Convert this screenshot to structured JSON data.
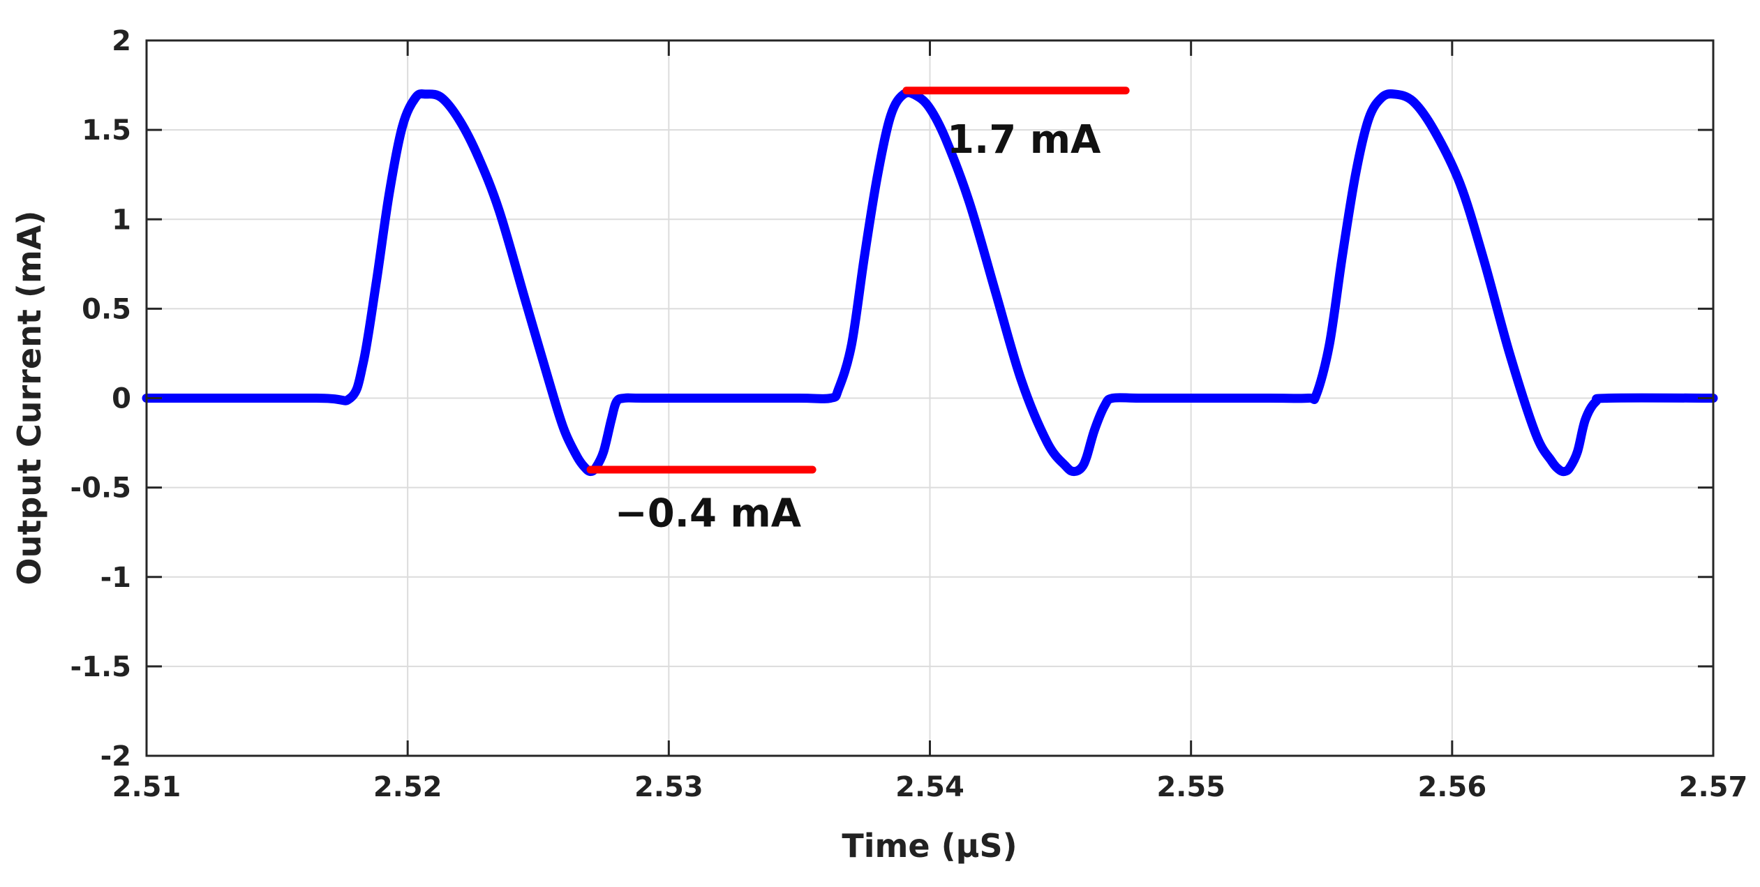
{
  "chart_data": {
    "type": "line",
    "xlabel": "Time (μS)",
    "ylabel": "Output Current (mA)",
    "xlim": [
      2.51,
      2.57
    ],
    "ylim": [
      -2,
      2
    ],
    "xticks": [
      2.51,
      2.52,
      2.53,
      2.54,
      2.55,
      2.56,
      2.57
    ],
    "xtick_labels": [
      "2.51",
      "2.52",
      "2.53",
      "2.54",
      "2.55",
      "2.56",
      "2.57"
    ],
    "yticks": [
      2,
      1.5,
      1,
      0.5,
      0,
      -0.5,
      -1,
      -1.5,
      -2
    ],
    "ytick_labels": [
      "2",
      "1.5",
      "1",
      "0.5",
      "0",
      "-0.5",
      "-1",
      "-1.5",
      "-2"
    ],
    "grid": true,
    "series": [
      {
        "color": "#0000ff",
        "x": [
          2.51,
          2.5165,
          2.5178,
          2.5183,
          2.5188,
          2.5193,
          2.5198,
          2.5203,
          2.5207,
          2.5213,
          2.522,
          2.5227,
          2.5235,
          2.5245,
          2.5255,
          2.526,
          2.5265,
          2.5268,
          2.527,
          2.5272,
          2.5275,
          2.5278,
          2.528,
          2.5283,
          2.529,
          2.532,
          2.535,
          2.5362,
          2.5365,
          2.537,
          2.5375,
          2.538,
          2.5385,
          2.539,
          2.5395,
          2.54,
          2.5406,
          2.5415,
          2.5425,
          2.5435,
          2.5445,
          2.5452,
          2.5455,
          2.5458,
          2.546,
          2.5463,
          2.5467,
          2.547,
          2.548,
          2.55,
          2.553,
          2.5545,
          2.5548,
          2.5553,
          2.5558,
          2.5563,
          2.5568,
          2.5573,
          2.5578,
          2.5585,
          2.5593,
          2.5603,
          2.5612,
          2.5622,
          2.5632,
          2.5638,
          2.5641,
          2.5643,
          2.5645,
          2.5648,
          2.5651,
          2.5655,
          2.566,
          2.57
        ],
        "y": [
          0,
          0,
          0.0,
          0.2,
          0.65,
          1.15,
          1.52,
          1.68,
          1.7,
          1.68,
          1.55,
          1.35,
          1.05,
          0.55,
          0.05,
          -0.18,
          -0.33,
          -0.39,
          -0.41,
          -0.39,
          -0.3,
          -0.12,
          -0.02,
          0,
          0,
          0,
          0,
          0.0,
          0.05,
          0.3,
          0.8,
          1.25,
          1.58,
          1.7,
          1.69,
          1.62,
          1.45,
          1.1,
          0.6,
          0.1,
          -0.25,
          -0.38,
          -0.41,
          -0.39,
          -0.33,
          -0.18,
          -0.04,
          0,
          0,
          0,
          0,
          0,
          0.02,
          0.3,
          0.8,
          1.25,
          1.56,
          1.68,
          1.7,
          1.66,
          1.5,
          1.2,
          0.78,
          0.25,
          -0.2,
          -0.35,
          -0.4,
          -0.41,
          -0.39,
          -0.3,
          -0.12,
          -0.02,
          0,
          0
        ]
      }
    ],
    "markers": [
      {
        "label": "−0.4 mA",
        "y": -0.4,
        "x_start": 2.527,
        "x_end": 2.5355,
        "color": "#ff0000",
        "label_x": 2.5315,
        "label_y": -0.64
      },
      {
        "label": "1.7 mA",
        "y": 1.72,
        "x_start": 2.5391,
        "x_end": 2.5475,
        "color": "#ff0000",
        "label_x": 2.5436,
        "label_y": 1.45
      }
    ]
  }
}
